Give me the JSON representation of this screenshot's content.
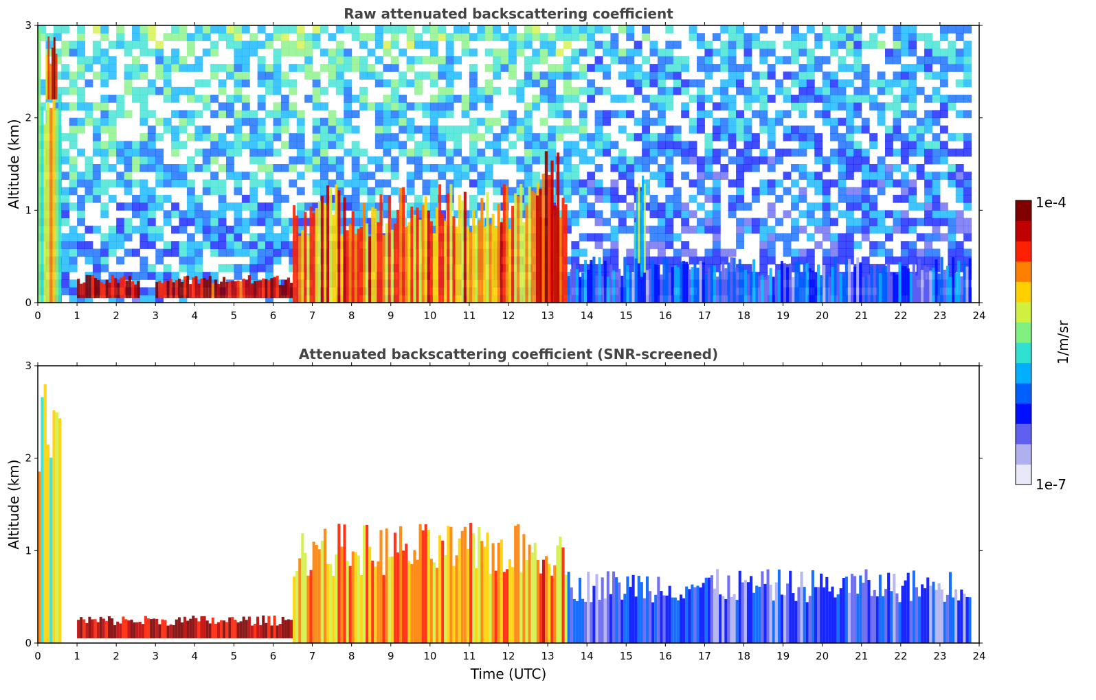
{
  "chart_data": [
    {
      "type": "heatmap",
      "title": "Raw attenuated backscattering coefficient",
      "xlabel": "",
      "ylabel": "Altitude (km)",
      "xlim": [
        0,
        24
      ],
      "ylim": [
        0,
        3
      ],
      "xticks": [
        "0",
        "1",
        "2",
        "3",
        "4",
        "5",
        "6",
        "7",
        "8",
        "9",
        "10",
        "11",
        "12",
        "13",
        "14",
        "15",
        "16",
        "17",
        "18",
        "19",
        "20",
        "21",
        "22",
        "23",
        "24"
      ],
      "yticks": [
        "0",
        "1",
        "2",
        "3"
      ],
      "features": [
        {
          "x": [
            0,
            0.6
          ],
          "y": [
            0,
            3
          ],
          "level": 0.6
        },
        {
          "x": [
            0.2,
            0.5
          ],
          "y": [
            2.2,
            2.9
          ],
          "level": 0.85
        },
        {
          "x": [
            1,
            2.6
          ],
          "y": [
            0.05,
            0.3
          ],
          "level": 0.95
        },
        {
          "x": [
            3,
            6.5
          ],
          "y": [
            0.05,
            0.3
          ],
          "level": 0.95
        },
        {
          "x": [
            6.5,
            13.5
          ],
          "y": [
            0,
            1.3
          ],
          "level": 0.75
        },
        {
          "x": [
            12.7,
            13.3
          ],
          "y": [
            0,
            1.8
          ],
          "level": 0.85
        },
        {
          "x": [
            15.2,
            15.5
          ],
          "y": [
            0,
            1.5
          ],
          "level": 0.5
        },
        {
          "x": [
            13.5,
            23.8
          ],
          "y": [
            0,
            0.5
          ],
          "level": 0.25
        }
      ]
    },
    {
      "type": "heatmap",
      "title": "Attenuated backscattering coefficient (SNR-screened)",
      "xlabel": "Time (UTC)",
      "ylabel": "Altitude (km)",
      "xlim": [
        0,
        24
      ],
      "ylim": [
        0,
        3
      ],
      "xticks": [
        "0",
        "1",
        "2",
        "3",
        "4",
        "5",
        "6",
        "7",
        "8",
        "9",
        "10",
        "11",
        "12",
        "13",
        "14",
        "15",
        "16",
        "17",
        "18",
        "19",
        "20",
        "21",
        "22",
        "23",
        "24"
      ],
      "yticks": [
        "0",
        "1",
        "2",
        "3"
      ],
      "features": [
        {
          "x": [
            0,
            0.6
          ],
          "y": [
            0,
            3
          ],
          "level": 0.6
        },
        {
          "x": [
            1,
            6.5
          ],
          "y": [
            0.05,
            0.3
          ],
          "level": 0.95
        },
        {
          "x": [
            6.5,
            13.5
          ],
          "y": [
            0,
            1.3
          ],
          "level": 0.75
        },
        {
          "x": [
            13.5,
            23.8
          ],
          "y": [
            0,
            0.8
          ],
          "level": 0.2
        }
      ]
    }
  ],
  "colorbar": {
    "label": "1/m/sr",
    "max_label": "1e-4",
    "min_label": "1e-7",
    "colors": [
      "#e8e8f8",
      "#b0b0f0",
      "#6060f0",
      "#0010ff",
      "#0060ff",
      "#00b0ff",
      "#30e0d0",
      "#80f080",
      "#d0f040",
      "#ffd000",
      "#ff8000",
      "#ff2000",
      "#c00000",
      "#800000"
    ]
  }
}
